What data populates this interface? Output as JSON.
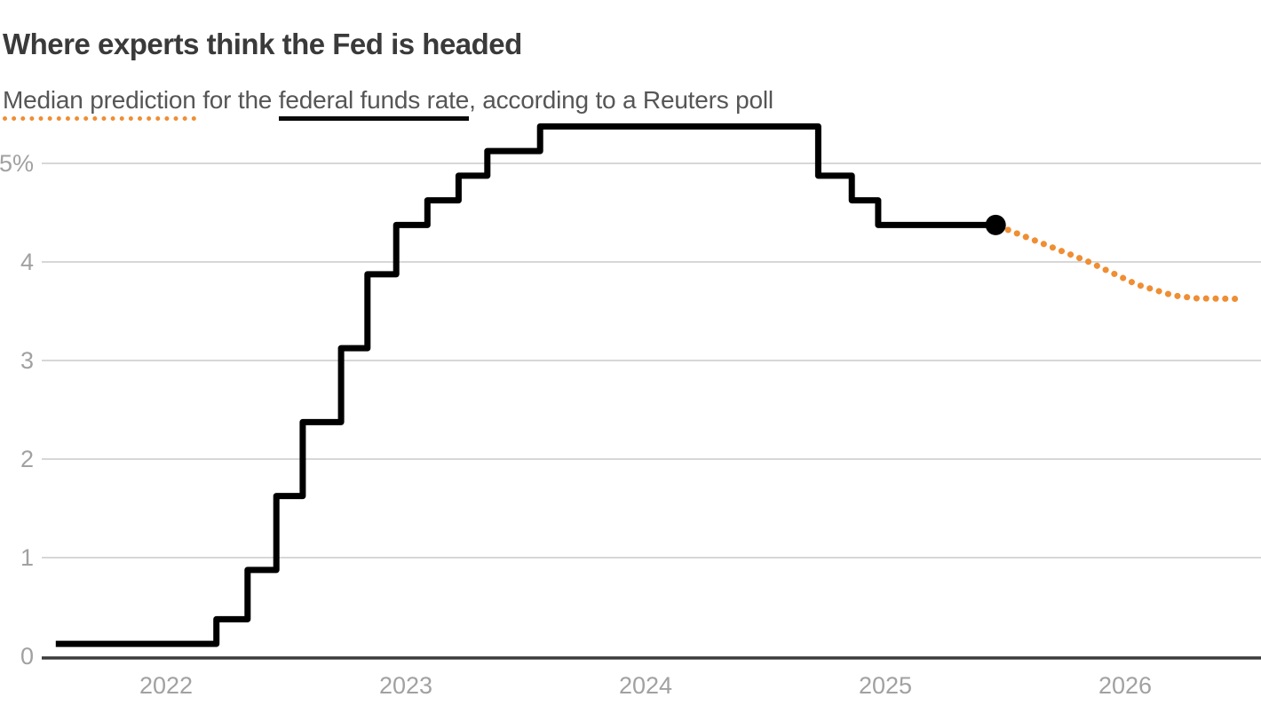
{
  "header": {
    "title": "Where experts think the Fed is headed",
    "subtitle": {
      "parts": [
        {
          "text": "Median prediction",
          "underline": "dotted-orange"
        },
        {
          "text": " for the ",
          "underline": "none"
        },
        {
          "text": "federal funds rate",
          "underline": "solid-black"
        },
        {
          "text": ", according to a Reuters poll",
          "underline": "none"
        }
      ]
    }
  },
  "chart_data": {
    "type": "line",
    "subtype": "step",
    "title": "Where experts think the Fed is headed",
    "subtitle": "Median prediction for the federal funds rate, according to a Reuters poll",
    "unit": "%",
    "grid": true,
    "legend_position": "none (encoded in subtitle underlines)",
    "x_axis": {
      "ticks": [
        {
          "value": 2022,
          "label": "2022"
        },
        {
          "value": 2023,
          "label": "2023"
        },
        {
          "value": 2024,
          "label": "2024"
        },
        {
          "value": 2025,
          "label": "2025"
        },
        {
          "value": 2026,
          "label": "2026"
        }
      ],
      "range": [
        2021.54,
        2026.57
      ]
    },
    "y_axis": {
      "ticks": [
        {
          "value": 5,
          "label": "5%"
        },
        {
          "value": 4,
          "label": "4"
        },
        {
          "value": 3,
          "label": "3"
        },
        {
          "value": 2,
          "label": "2"
        },
        {
          "value": 1,
          "label": "1"
        },
        {
          "value": 0,
          "label": "0"
        }
      ],
      "range": [
        0,
        5.55
      ]
    },
    "series": [
      {
        "name": "Federal funds rate (actual)",
        "style": "step-solid",
        "color": "#000000",
        "points": [
          [
            2021.54,
            0.125
          ],
          [
            2022.21,
            0.375
          ],
          [
            2022.34,
            0.875
          ],
          [
            2022.46,
            1.625
          ],
          [
            2022.57,
            2.375
          ],
          [
            2022.73,
            3.125
          ],
          [
            2022.84,
            3.875
          ],
          [
            2022.96,
            4.375
          ],
          [
            2023.09,
            4.625
          ],
          [
            2023.22,
            4.875
          ],
          [
            2023.34,
            5.125
          ],
          [
            2023.56,
            5.375
          ],
          [
            2024.72,
            4.875
          ],
          [
            2024.86,
            4.625
          ],
          [
            2024.97,
            4.375
          ],
          [
            2025.46,
            4.375
          ]
        ]
      },
      {
        "name": "Median prediction (Reuters poll forecast)",
        "style": "dotted",
        "color": "#EF8E33",
        "points": [
          [
            2025.46,
            4.375
          ],
          [
            2025.84,
            4.01
          ],
          [
            2026.05,
            3.77
          ],
          [
            2026.2,
            3.66
          ],
          [
            2026.3,
            3.63
          ],
          [
            2026.48,
            3.625
          ]
        ]
      }
    ],
    "endpoint_marker": {
      "x": 2025.46,
      "y": 4.375,
      "color": "#000000"
    }
  },
  "colors": {
    "accent_orange": "#EF8E33",
    "line_black": "#000000",
    "grid_gray": "#D7D7D7",
    "axis_dark": "#3C3C3C",
    "tick_label_gray": "#A1A1A1",
    "title_gray": "#3A3A3A",
    "subtitle_gray": "#565656"
  }
}
